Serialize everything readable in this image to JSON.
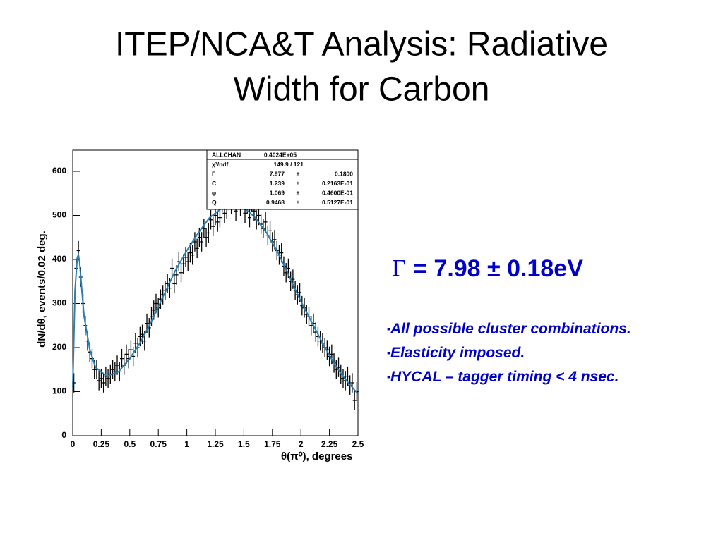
{
  "title": "ITEP/NCA&T Analysis: Radiative Width for Carbon",
  "result": {
    "symbol": "Γ",
    "text": "= 7.98 ± 0.18eV"
  },
  "bullets": [
    "All possible cluster combinations.",
    "Elasticity imposed.",
    "HYCAL – tagger timing < 4 nsec."
  ],
  "chart_data": {
    "type": "errorbar",
    "xlabel": "θ(π⁰), degrees",
    "ylabel": "dN/dθ, events/0.02 deg.",
    "xlim": [
      0,
      2.5
    ],
    "ylim": [
      0,
      648
    ],
    "xticks": [
      0,
      0.25,
      0.5,
      0.75,
      1,
      1.25,
      1.5,
      1.75,
      2,
      2.25,
      2.5
    ],
    "yticks": [
      0,
      100,
      200,
      300,
      400,
      500,
      600
    ],
    "stats_box": {
      "rows": [
        [
          "ALLCHAN",
          "0.4024E+05",
          "",
          ""
        ],
        [
          "χ²/ndf",
          "149.9 / 121",
          "",
          ""
        ],
        [
          "Γ",
          "7.977",
          "±",
          "0.1800"
        ],
        [
          "C",
          "1.239",
          "±",
          "0.2163E-01"
        ],
        [
          "φ",
          "1.069",
          "±",
          "0.4600E-01"
        ],
        [
          "Q",
          "0.9468",
          "±",
          "0.5127E-01"
        ]
      ]
    },
    "series": [
      {
        "type": "errorbar",
        "color": "#000000",
        "error": 22,
        "x": [
          0.01,
          0.03,
          0.05,
          0.07,
          0.09,
          0.11,
          0.13,
          0.15,
          0.17,
          0.19,
          0.21,
          0.23,
          0.25,
          0.27,
          0.29,
          0.31,
          0.33,
          0.35,
          0.37,
          0.39,
          0.41,
          0.43,
          0.45,
          0.47,
          0.49,
          0.51,
          0.53,
          0.55,
          0.57,
          0.59,
          0.61,
          0.63,
          0.65,
          0.67,
          0.69,
          0.71,
          0.73,
          0.75,
          0.77,
          0.79,
          0.81,
          0.83,
          0.85,
          0.87,
          0.89,
          0.91,
          0.93,
          0.95,
          0.97,
          0.99,
          1.01,
          1.03,
          1.05,
          1.07,
          1.09,
          1.11,
          1.13,
          1.15,
          1.17,
          1.19,
          1.21,
          1.23,
          1.25,
          1.27,
          1.29,
          1.31,
          1.33,
          1.35,
          1.37,
          1.39,
          1.41,
          1.43,
          1.45,
          1.47,
          1.49,
          1.51,
          1.53,
          1.55,
          1.57,
          1.59,
          1.61,
          1.63,
          1.65,
          1.67,
          1.69,
          1.71,
          1.73,
          1.75,
          1.77,
          1.79,
          1.81,
          1.83,
          1.85,
          1.87,
          1.89,
          1.91,
          1.93,
          1.95,
          1.97,
          1.99,
          2.01,
          2.03,
          2.05,
          2.07,
          2.09,
          2.11,
          2.13,
          2.15,
          2.17,
          2.19,
          2.21,
          2.23,
          2.25,
          2.27,
          2.29,
          2.31,
          2.33,
          2.35,
          2.37,
          2.39,
          2.41,
          2.43,
          2.45,
          2.47,
          2.49
        ],
        "values": [
          120,
          380,
          420,
          360,
          300,
          250,
          215,
          190,
          175,
          150,
          150,
          125,
          130,
          120,
          135,
          130,
          140,
          150,
          145,
          160,
          145,
          175,
          160,
          185,
          175,
          195,
          180,
          210,
          200,
          225,
          230,
          215,
          255,
          245,
          270,
          285,
          300,
          290,
          310,
          320,
          330,
          345,
          335,
          380,
          345,
          365,
          395,
          370,
          390,
          405,
          395,
          415,
          410,
          440,
          425,
          450,
          440,
          470,
          450,
          460,
          490,
          475,
          500,
          485,
          495,
          530,
          505,
          515,
          540,
          525,
          545,
          510,
          535,
          520,
          550,
          505,
          525,
          495,
          530,
          510,
          490,
          500,
          480,
          470,
          485,
          455,
          465,
          440,
          445,
          420,
          410,
          415,
          385,
          370,
          380,
          350,
          355,
          330,
          320,
          325,
          295,
          290,
          275,
          270,
          250,
          255,
          235,
          225,
          215,
          210,
          200,
          195,
          180,
          185,
          165,
          150,
          155,
          140,
          130,
          125,
          135,
          115,
          120,
          80,
          100
        ]
      },
      {
        "type": "line",
        "color": "#2a7fb0",
        "x": [
          0,
          0.02,
          0.04,
          0.05,
          0.06,
          0.08,
          0.1,
          0.15,
          0.2,
          0.3,
          0.4,
          0.5,
          0.6,
          0.7,
          0.8,
          0.9,
          1.0,
          1.1,
          1.2,
          1.3,
          1.4,
          1.45,
          1.5,
          1.6,
          1.7,
          1.8,
          1.9,
          2.0,
          2.1,
          2.2,
          2.3,
          2.4,
          2.5
        ],
        "values": [
          110,
          330,
          405,
          410,
          395,
          330,
          270,
          195,
          155,
          135,
          145,
          175,
          215,
          265,
          320,
          375,
          420,
          460,
          495,
          515,
          522,
          522,
          518,
          495,
          460,
          415,
          360,
          305,
          255,
          205,
          160,
          125,
          95
        ]
      }
    ]
  }
}
